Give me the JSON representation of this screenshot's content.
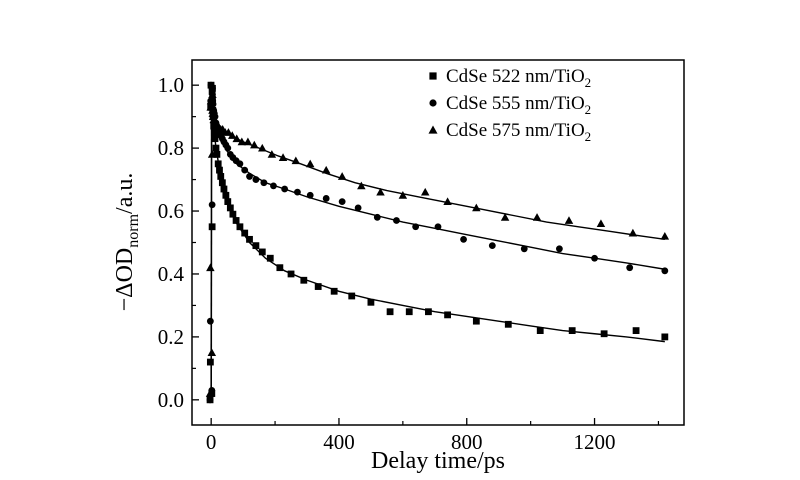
{
  "chart_data": {
    "type": "scatter",
    "xlabel": "Delay time/ps",
    "ylabel": {
      "prefix": "−ΔOD",
      "subscript": "norm",
      "suffix": "/a.u."
    },
    "xlim": [
      -60,
      1480
    ],
    "ylim": [
      -0.08,
      1.08
    ],
    "xticks": [
      0,
      400,
      800,
      1200
    ],
    "yticks": [
      0.0,
      0.2,
      0.4,
      0.6,
      0.8,
      1.0
    ],
    "ytick_labels": [
      "0.0",
      "0.2",
      "0.4",
      "0.6",
      "0.8",
      "1.0"
    ],
    "grid": false,
    "legend_position": "top-right",
    "series": [
      {
        "name": "CdSe 522 nm/TiO",
        "name_subscript": "2",
        "marker": "square",
        "x": [
          -1,
          -0.5,
          0,
          0.5,
          1,
          1.5,
          2,
          3,
          4,
          5,
          6,
          8,
          10,
          12,
          15,
          18,
          22,
          26,
          30,
          35,
          40,
          46,
          52,
          60,
          68,
          78,
          90,
          105,
          120,
          140,
          160,
          185,
          215,
          250,
          290,
          335,
          385,
          440,
          500,
          560,
          620,
          680,
          740,
          830,
          930,
          1030,
          1130,
          1230,
          1330,
          1420
        ],
        "y": [
          0.0,
          0.02,
          0.12,
          0.55,
          0.93,
          0.99,
          1.0,
          0.98,
          0.95,
          0.92,
          0.9,
          0.87,
          0.85,
          0.83,
          0.8,
          0.78,
          0.75,
          0.73,
          0.71,
          0.69,
          0.67,
          0.65,
          0.63,
          0.61,
          0.59,
          0.57,
          0.55,
          0.53,
          0.51,
          0.49,
          0.47,
          0.45,
          0.42,
          0.4,
          0.38,
          0.36,
          0.345,
          0.33,
          0.31,
          0.28,
          0.28,
          0.28,
          0.27,
          0.25,
          0.24,
          0.22,
          0.22,
          0.21,
          0.22,
          0.2
        ],
        "fit_x": [
          0,
          5,
          15,
          30,
          50,
          80,
          120,
          170,
          230,
          300,
          400,
          500,
          600,
          700,
          800,
          900,
          1000,
          1100,
          1200,
          1300,
          1420
        ],
        "fit_y": [
          0.96,
          0.9,
          0.8,
          0.71,
          0.63,
          0.56,
          0.5,
          0.45,
          0.41,
          0.38,
          0.345,
          0.32,
          0.3,
          0.28,
          0.265,
          0.25,
          0.235,
          0.22,
          0.21,
          0.2,
          0.185
        ]
      },
      {
        "name": "CdSe 555 nm/TiO",
        "name_subscript": "2",
        "marker": "circle",
        "x": [
          -1,
          -0.5,
          0,
          0.5,
          1,
          1.5,
          2,
          3,
          4,
          5,
          6,
          8,
          10,
          12,
          15,
          18,
          22,
          26,
          30,
          35,
          40,
          46,
          52,
          60,
          68,
          78,
          90,
          105,
          120,
          140,
          165,
          195,
          230,
          270,
          310,
          360,
          410,
          460,
          520,
          580,
          640,
          710,
          790,
          880,
          980,
          1090,
          1200,
          1310,
          1420
        ],
        "y": [
          0.0,
          0.03,
          0.25,
          0.62,
          0.95,
          0.99,
          1.0,
          0.99,
          0.97,
          0.95,
          0.94,
          0.92,
          0.91,
          0.9,
          0.88,
          0.87,
          0.86,
          0.85,
          0.84,
          0.83,
          0.82,
          0.81,
          0.8,
          0.78,
          0.77,
          0.76,
          0.75,
          0.73,
          0.71,
          0.7,
          0.69,
          0.68,
          0.67,
          0.66,
          0.65,
          0.64,
          0.63,
          0.61,
          0.58,
          0.57,
          0.55,
          0.55,
          0.51,
          0.49,
          0.48,
          0.48,
          0.45,
          0.42,
          0.41
        ],
        "fit_x": [
          0,
          5,
          15,
          30,
          50,
          80,
          120,
          170,
          230,
          300,
          400,
          500,
          600,
          700,
          800,
          900,
          1000,
          1100,
          1200,
          1300,
          1420
        ],
        "fit_y": [
          0.97,
          0.94,
          0.88,
          0.83,
          0.79,
          0.75,
          0.72,
          0.69,
          0.67,
          0.645,
          0.615,
          0.59,
          0.565,
          0.545,
          0.525,
          0.505,
          0.485,
          0.465,
          0.45,
          0.435,
          0.415
        ]
      },
      {
        "name": "CdSe 575 nm/TiO",
        "name_subscript": "2",
        "marker": "triangle",
        "x": [
          -1,
          -0.5,
          0,
          0.5,
          1,
          1.5,
          2,
          3,
          4,
          5,
          6,
          8,
          10,
          12,
          15,
          18,
          22,
          26,
          30,
          36,
          44,
          54,
          66,
          80,
          96,
          115,
          135,
          160,
          190,
          225,
          265,
          310,
          360,
          410,
          470,
          530,
          600,
          670,
          740,
          830,
          920,
          1020,
          1120,
          1220,
          1320,
          1420
        ],
        "y": [
          0.02,
          0.15,
          0.42,
          0.78,
          0.93,
          0.97,
          0.95,
          0.93,
          0.92,
          0.91,
          0.9,
          0.89,
          0.89,
          0.88,
          0.88,
          0.87,
          0.87,
          0.86,
          0.86,
          0.86,
          0.85,
          0.85,
          0.84,
          0.83,
          0.82,
          0.82,
          0.81,
          0.8,
          0.78,
          0.77,
          0.76,
          0.75,
          0.73,
          0.71,
          0.68,
          0.66,
          0.65,
          0.66,
          0.63,
          0.61,
          0.58,
          0.58,
          0.57,
          0.56,
          0.53,
          0.52
        ],
        "fit_x": [
          0,
          10,
          30,
          60,
          100,
          150,
          210,
          280,
          360,
          450,
          550,
          650,
          750,
          850,
          950,
          1050,
          1150,
          1250,
          1350,
          1420
        ],
        "fit_y": [
          0.91,
          0.88,
          0.86,
          0.84,
          0.82,
          0.8,
          0.775,
          0.75,
          0.72,
          0.69,
          0.665,
          0.645,
          0.625,
          0.605,
          0.585,
          0.565,
          0.55,
          0.535,
          0.52,
          0.51
        ]
      }
    ]
  }
}
